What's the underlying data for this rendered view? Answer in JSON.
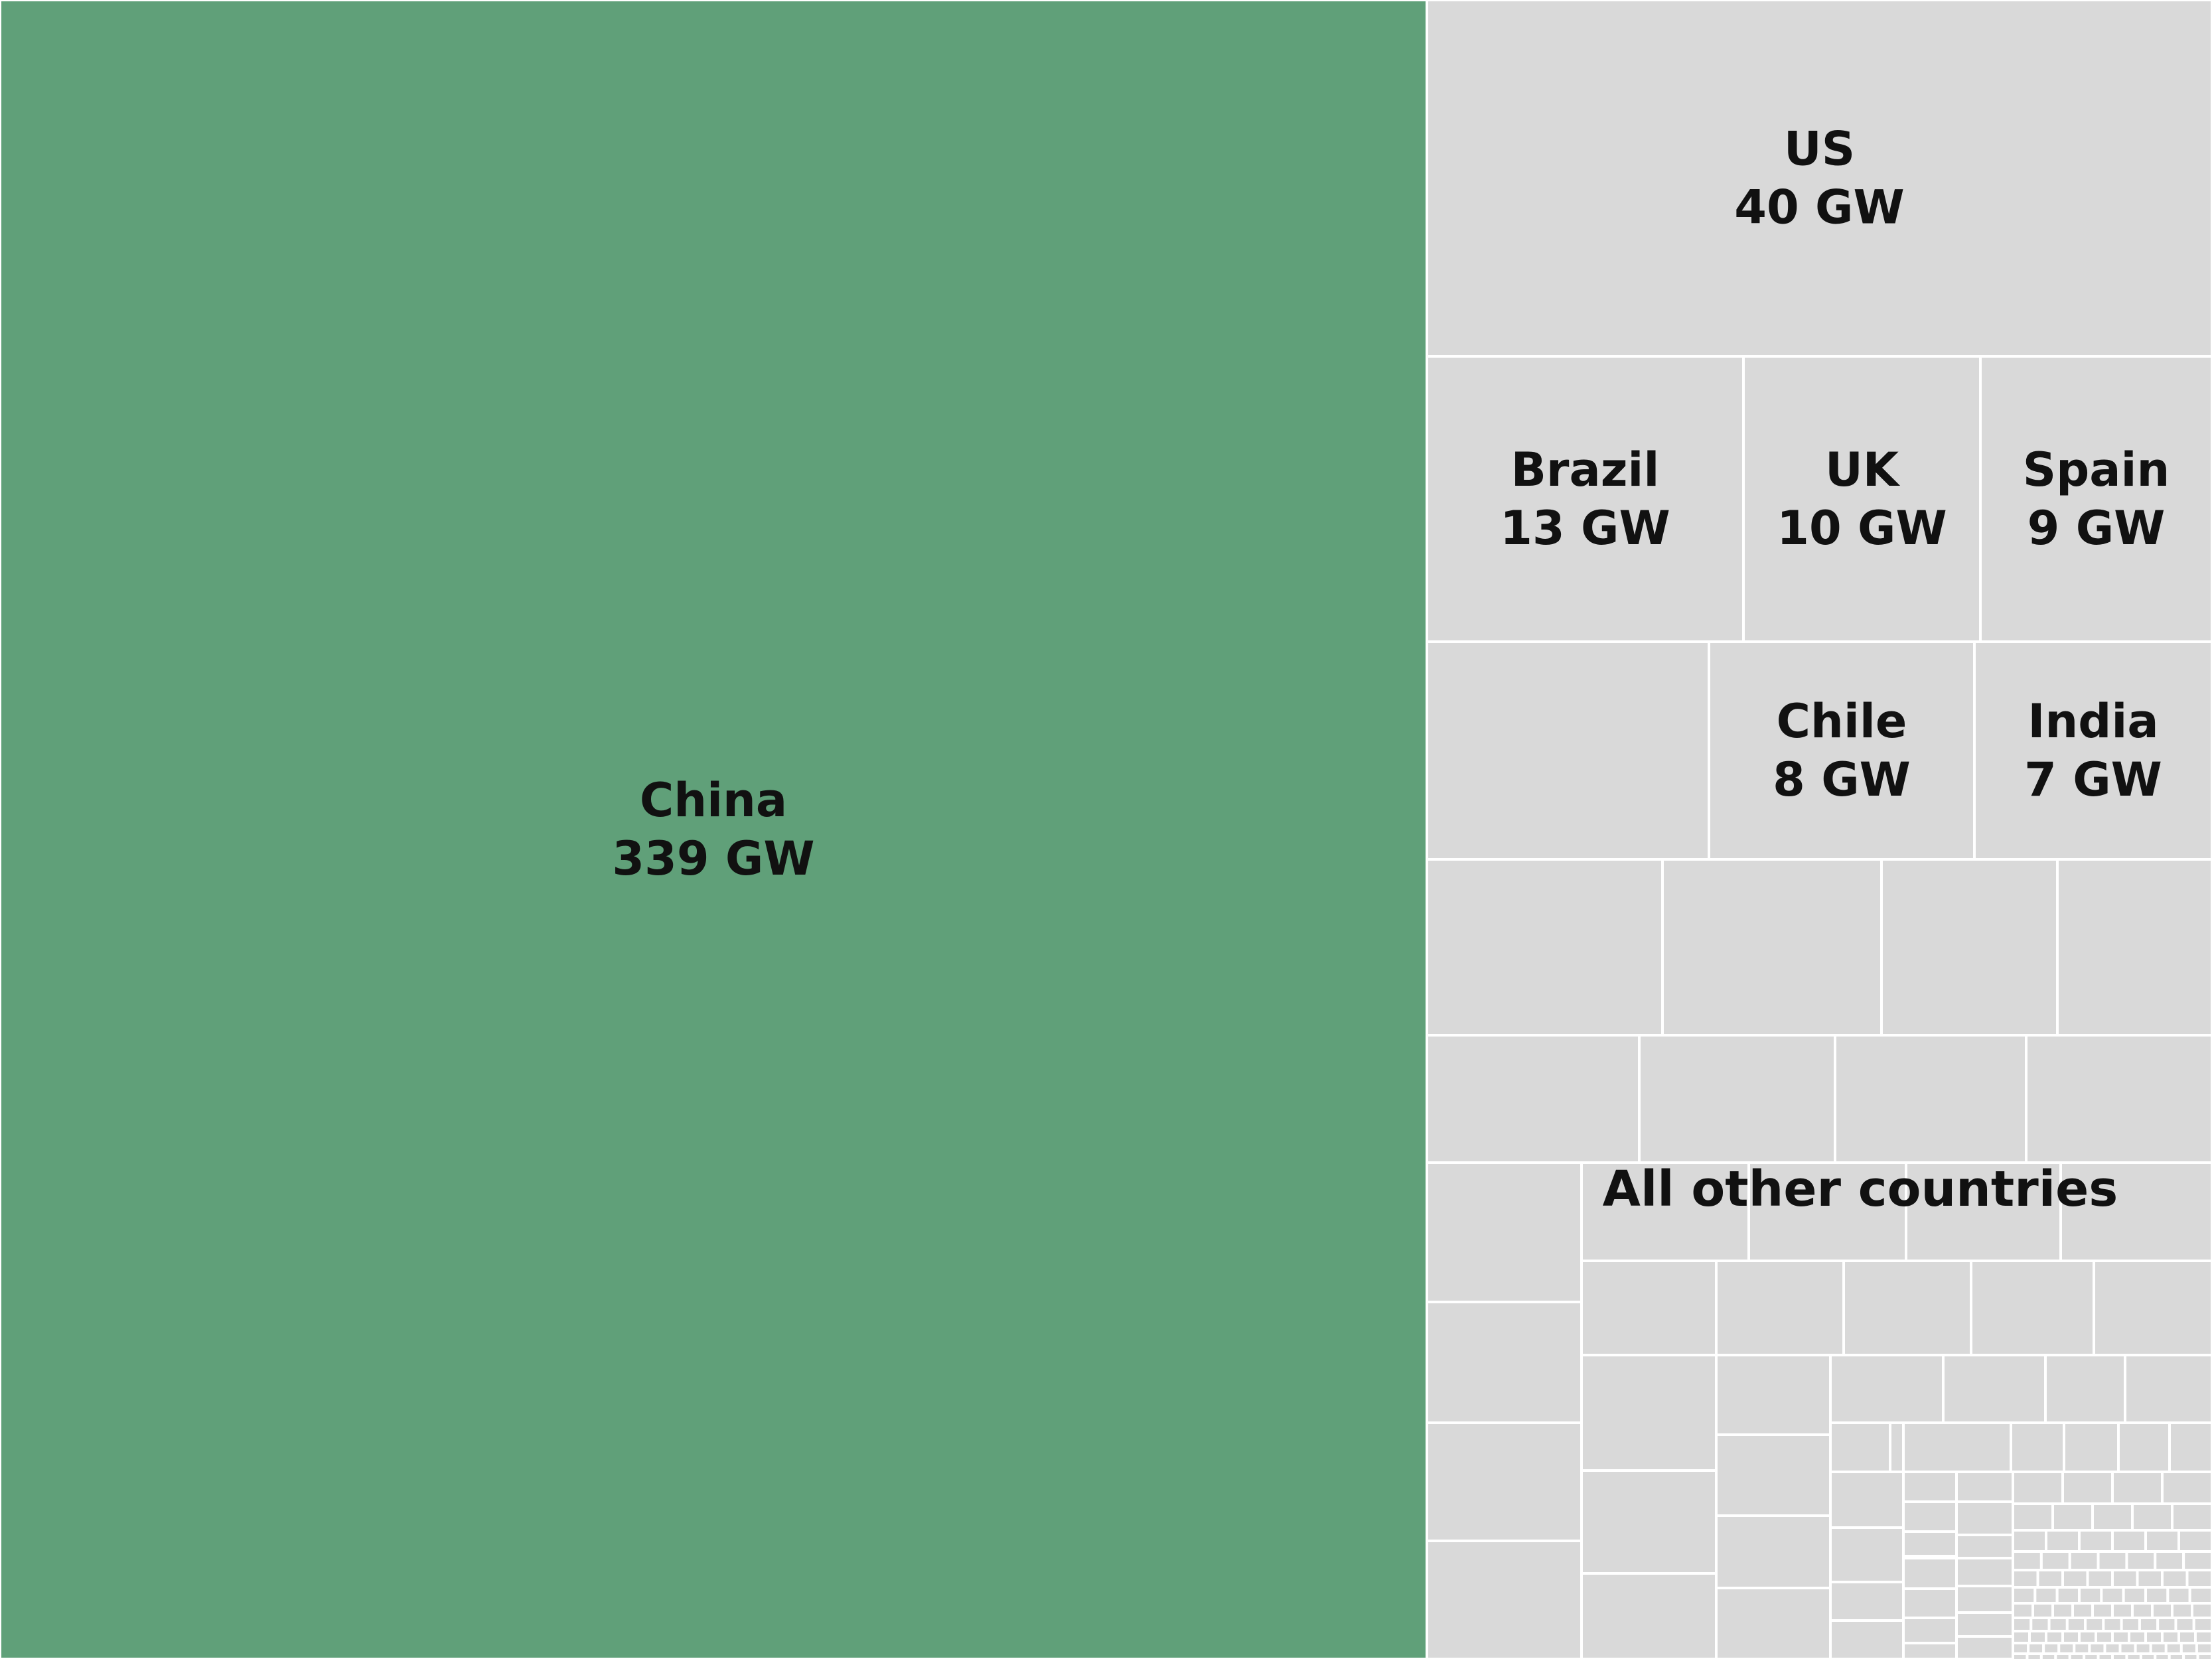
{
  "chart_data": {
    "type": "treemap",
    "unit": "GW",
    "colors": {
      "highlight": "#60a079",
      "other": "#d9d9d9",
      "border": "#ffffff",
      "text": "#111111"
    },
    "items": [
      {
        "name": "China",
        "value": 339,
        "value_label": "339 GW",
        "highlight": true
      },
      {
        "name": "US",
        "value": 40,
        "value_label": "40 GW"
      },
      {
        "name": "Brazil",
        "value": 13,
        "value_label": "13 GW"
      },
      {
        "name": "UK",
        "value": 10,
        "value_label": "10 GW"
      },
      {
        "name": "Spain",
        "value": 9,
        "value_label": "9 GW"
      },
      {
        "name": "Chile",
        "value": 8,
        "value_label": "8 GW"
      },
      {
        "name": "India",
        "value": 7,
        "value_label": "7 GW"
      }
    ],
    "group_label": "All other countries"
  }
}
